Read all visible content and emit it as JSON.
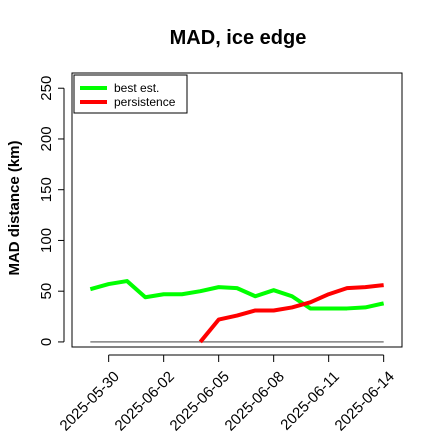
{
  "chart_data": {
    "type": "line",
    "title": "MAD, ice edge",
    "xlabel": "",
    "ylabel": "MAD distance (km)",
    "x_dates": [
      "2025-05-29",
      "2025-05-30",
      "2025-05-31",
      "2025-06-01",
      "2025-06-02",
      "2025-06-03",
      "2025-06-04",
      "2025-06-05",
      "2025-06-06",
      "2025-06-07",
      "2025-06-08",
      "2025-06-09",
      "2025-06-10",
      "2025-06-11",
      "2025-06-12",
      "2025-06-13",
      "2025-06-14"
    ],
    "x_ticks": [
      "2025-05-30",
      "2025-06-02",
      "2025-06-05",
      "2025-06-08",
      "2025-06-11",
      "2025-06-14"
    ],
    "x_range": [
      "2025-05-28",
      "2025-06-15"
    ],
    "ylim": [
      -5,
      265
    ],
    "y_ticks": [
      0,
      50,
      100,
      150,
      200,
      250
    ],
    "grid": false,
    "legend_position": "top-left",
    "baseline": {
      "value": 0,
      "color": "#808080"
    },
    "series": [
      {
        "name": "best est.",
        "color": "#00ff00",
        "values": [
          52,
          57,
          60,
          44,
          47,
          47,
          50,
          54,
          53,
          45,
          51,
          45,
          33,
          33,
          33,
          34,
          38
        ]
      },
      {
        "name": "persistence",
        "color": "#ff0000",
        "values": [
          null,
          null,
          null,
          null,
          null,
          null,
          0,
          22,
          26,
          31,
          31,
          34,
          39,
          47,
          53,
          54,
          56
        ]
      }
    ]
  }
}
